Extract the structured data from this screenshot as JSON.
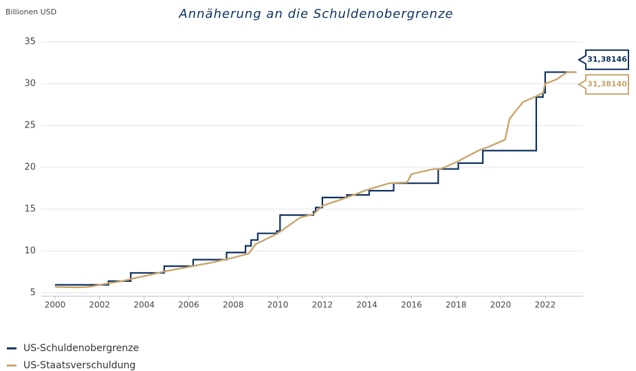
{
  "chart_data": {
    "type": "line",
    "title": "Annäherung an die Schuldenobergrenze",
    "y_label": "Billionen USD",
    "xlim": [
      2000,
      2023.7
    ],
    "xticks": [
      2000,
      2002,
      2004,
      2006,
      2008,
      2010,
      2012,
      2014,
      2016,
      2018,
      2020,
      2022
    ],
    "ylim": [
      5,
      35
    ],
    "yticks": [
      5,
      10,
      15,
      20,
      25,
      30,
      35
    ],
    "grid": true,
    "legend": "bottom-left",
    "series": [
      {
        "name": "US-Schuldenobergrenze",
        "color": "#0d2f5e",
        "end_value": 31.38146,
        "end_label": "31,38146",
        "x": [
          2000,
          2002.4,
          2002.4,
          2003.4,
          2003.4,
          2004.9,
          2004.9,
          2006.2,
          2006.2,
          2007.7,
          2007.7,
          2008.55,
          2008.55,
          2008.8,
          2008.8,
          2009.1,
          2009.1,
          2009.95,
          2009.95,
          2010.1,
          2010.1,
          2011.6,
          2011.6,
          2011.7,
          2011.7,
          2012.0,
          2012.0,
          2013.1,
          2013.1,
          2014.1,
          2014.1,
          2015.2,
          2015.2,
          2017.2,
          2017.2,
          2018.1,
          2018.1,
          2019.2,
          2019.2,
          2021.6,
          2021.6,
          2021.9,
          2021.9,
          2022.0,
          2022.0,
          2023.4
        ],
        "values": [
          5.95,
          5.95,
          6.4,
          6.4,
          7.384,
          7.384,
          8.184,
          8.184,
          8.965,
          8.965,
          9.815,
          9.815,
          10.615,
          10.615,
          11.315,
          11.315,
          12.104,
          12.104,
          12.394,
          12.394,
          14.294,
          14.294,
          14.694,
          14.694,
          15.194,
          15.194,
          16.394,
          16.394,
          16.7,
          16.7,
          17.2,
          17.2,
          18.1,
          18.1,
          19.8,
          19.8,
          20.5,
          20.5,
          22.0,
          22.0,
          28.4,
          28.4,
          28.9,
          28.9,
          31.38,
          31.38
        ]
      },
      {
        "name": "US-Staatsverschuldung",
        "color": "#c8a46a",
        "end_value": 31.3814,
        "end_label": "31,38140",
        "x": [
          2000,
          2001,
          2001.5,
          2002,
          2003,
          2004,
          2005,
          2006,
          2007,
          2008,
          2008.7,
          2009,
          2010,
          2011,
          2011.6,
          2012,
          2013,
          2014,
          2015,
          2015.8,
          2016,
          2017,
          2017.3,
          2018,
          2019,
          2019.5,
          2020.2,
          2020.4,
          2020.7,
          2021,
          2021.6,
          2021.9,
          2022,
          2022.5,
          2023,
          2023.4
        ],
        "values": [
          5.7,
          5.65,
          5.7,
          5.95,
          6.4,
          7.0,
          7.6,
          8.1,
          8.6,
          9.2,
          9.7,
          10.8,
          12.1,
          14.0,
          14.4,
          15.4,
          16.3,
          17.3,
          18.1,
          18.2,
          19.2,
          19.8,
          19.8,
          20.6,
          22.0,
          22.5,
          23.3,
          25.8,
          26.8,
          27.8,
          28.5,
          28.9,
          30.0,
          30.5,
          31.4,
          31.38
        ]
      }
    ]
  }
}
